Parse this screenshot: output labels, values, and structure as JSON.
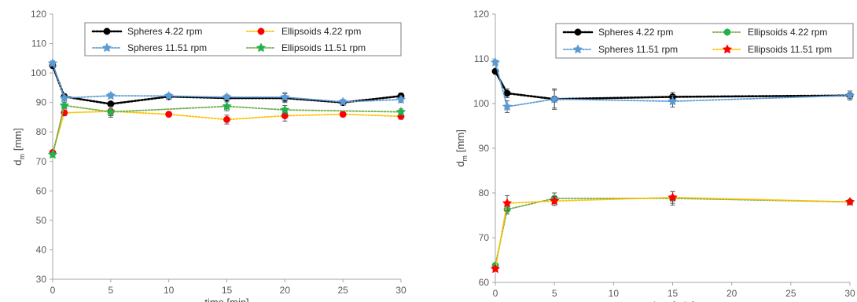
{
  "colors": {
    "spheres_422": "#000000",
    "spheres_1151": "#5B9BD5",
    "ellipsoids_orange": "#FFC000",
    "ellipsoids_green": "#70AD47",
    "marker_red": "#FF0000",
    "marker_green": "#22B14C",
    "axis": "#A6A6A6",
    "text": "#595959"
  },
  "chart_data": [
    {
      "type": "scatter",
      "xlabel": "time [min]",
      "ylabel_main": "d",
      "ylabel_sub": "m",
      "ylabel_unit": "[mm]",
      "xlim": [
        0,
        30
      ],
      "ylim": [
        30,
        120
      ],
      "xticks": [
        0,
        5,
        10,
        15,
        20,
        25,
        30
      ],
      "yticks": [
        30,
        40,
        50,
        60,
        70,
        80,
        90,
        100,
        110,
        120
      ],
      "grid": false,
      "legend": "top-right, boxed, two columns",
      "series": [
        {
          "name": "Spheres 4.22 rpm",
          "line_color": "#000000",
          "marker_color": "#000000",
          "marker": "circle",
          "line": "dotted-heavy",
          "x": [
            0,
            1,
            5,
            10,
            15,
            20,
            25,
            30
          ],
          "y": [
            102.5,
            92,
            89.5,
            92,
            91.5,
            91.5,
            90,
            92.2
          ],
          "err": [
            0.8,
            1,
            0.8,
            0.8,
            0.8,
            1.5,
            0.8,
            1
          ]
        },
        {
          "name": "Ellipsoids 4.22 rpm",
          "line_color": "#FFC000",
          "marker_color": "#FF0000",
          "marker": "circle",
          "line": "dotted",
          "x": [
            0,
            1,
            5,
            10,
            15,
            20,
            25,
            30
          ],
          "y": [
            73,
            86.5,
            87,
            86,
            84.2,
            85.5,
            86,
            85.3
          ],
          "err": [
            0.8,
            1,
            1.5,
            0.8,
            1.5,
            1.8,
            0.8,
            1
          ]
        },
        {
          "name": "Spheres 11.51 rpm",
          "line_color": "#5B9BD5",
          "marker_color": "#5B9BD5",
          "marker": "star",
          "line": "dotted",
          "x": [
            0,
            1,
            5,
            10,
            15,
            20,
            25,
            30
          ],
          "y": [
            103.3,
            91.5,
            92.3,
            92.2,
            91.8,
            91.8,
            90.2,
            91
          ],
          "err": [
            0.8,
            1,
            0.8,
            0.8,
            0.8,
            1.5,
            0.8,
            1
          ]
        },
        {
          "name": "Ellipsoids 11.51 rpm",
          "line_color": "#70AD47",
          "marker_color": "#22B14C",
          "marker": "star",
          "line": "dotted",
          "x": [
            0,
            1,
            5,
            15,
            20,
            30
          ],
          "y": [
            72.3,
            89,
            86.8,
            88.7,
            87.5,
            86.8
          ],
          "err": [
            0.8,
            1,
            1.8,
            1.5,
            1.5,
            1
          ]
        }
      ]
    },
    {
      "type": "scatter",
      "xlabel": "time [min]",
      "ylabel_main": "d",
      "ylabel_sub": "m",
      "ylabel_unit": "[mm]",
      "xlim": [
        0,
        30
      ],
      "ylim": [
        60,
        120
      ],
      "xticks": [
        0,
        5,
        10,
        15,
        20,
        25,
        30
      ],
      "yticks": [
        60,
        70,
        80,
        90,
        100,
        110,
        120
      ],
      "grid": false,
      "legend": "top-right, boxed, two columns",
      "series": [
        {
          "name": "Spheres 4.22 rpm",
          "line_color": "#000000",
          "marker_color": "#000000",
          "marker": "circle",
          "line": "dotted-heavy",
          "x": [
            0,
            1,
            5,
            15,
            30
          ],
          "y": [
            107.2,
            102.3,
            101,
            101.5,
            101.8
          ],
          "err": [
            0.5,
            1,
            2,
            1,
            1
          ]
        },
        {
          "name": "Ellipsoids 4.22 rpm",
          "line_color": "#70AD47",
          "marker_color": "#22B14C",
          "marker": "circle",
          "line": "dotted",
          "x": [
            0,
            1,
            5,
            15,
            30
          ],
          "y": [
            63.8,
            76.3,
            78.8,
            78.8,
            78
          ],
          "err": [
            0.5,
            1,
            1.2,
            1.5,
            0.5
          ]
        },
        {
          "name": "Spheres 11.51 rpm",
          "line_color": "#5B9BD5",
          "marker_color": "#5B9BD5",
          "marker": "star",
          "line": "dotted",
          "x": [
            0,
            1,
            5,
            15,
            30
          ],
          "y": [
            109.2,
            99.3,
            101,
            100.5,
            101.8
          ],
          "err": [
            0.5,
            1.3,
            2.3,
            1.3,
            1
          ]
        },
        {
          "name": "Ellipsoids 11.51 rpm",
          "line_color": "#FFC000",
          "marker_color": "#FF0000",
          "marker": "star",
          "line": "dotted",
          "x": [
            0,
            1,
            5,
            15,
            30
          ],
          "y": [
            63,
            77.7,
            78.2,
            79,
            78
          ],
          "err": [
            0.5,
            1.7,
            1,
            1.3,
            0.5
          ]
        }
      ]
    }
  ]
}
